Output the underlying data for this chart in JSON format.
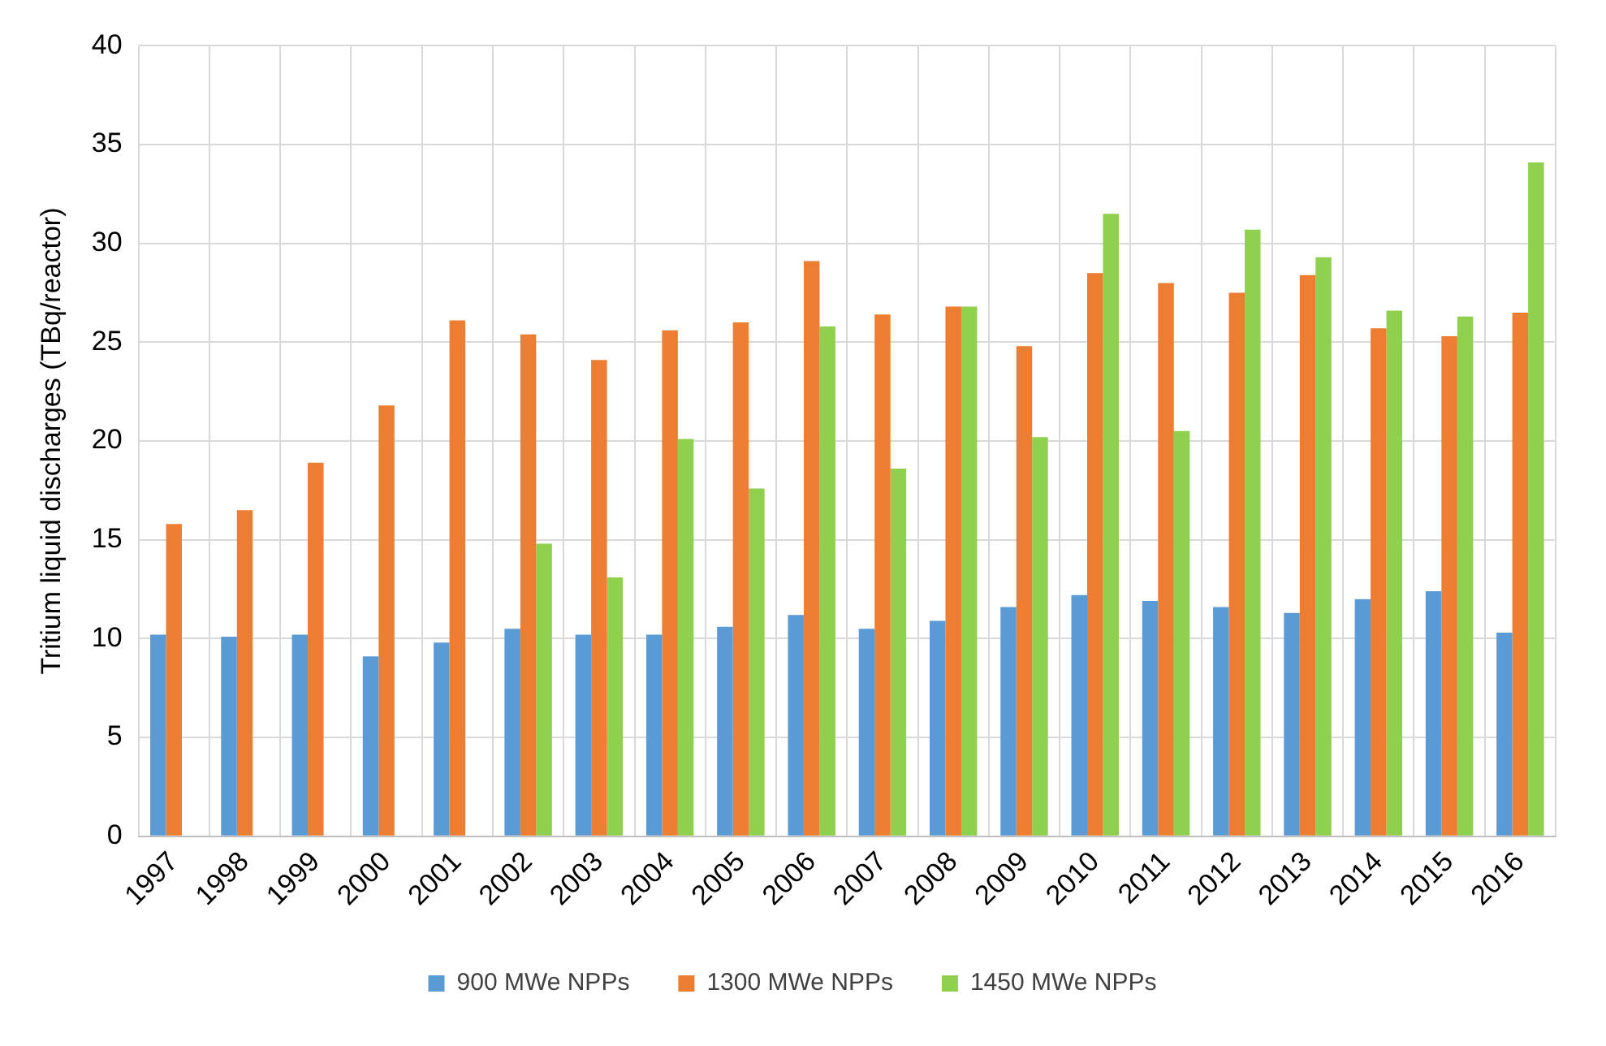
{
  "chart_data": {
    "type": "bar",
    "ylabel": "Tritium liquid discharges (TBq/reactor)",
    "categories": [
      "1997",
      "1998",
      "1999",
      "2000",
      "2001",
      "2002",
      "2003",
      "2004",
      "2005",
      "2006",
      "2007",
      "2008",
      "2009",
      "2010",
      "2011",
      "2012",
      "2013",
      "2014",
      "2015",
      "2016"
    ],
    "series": [
      {
        "name": "900 MWe NPPs",
        "color": "#5b9bd5",
        "values": [
          10.2,
          10.1,
          10.2,
          9.1,
          9.8,
          10.5,
          10.2,
          10.2,
          10.6,
          11.2,
          10.5,
          10.9,
          11.6,
          12.2,
          11.9,
          11.6,
          11.3,
          12.0,
          12.4,
          10.3
        ]
      },
      {
        "name": "1300 MWe NPPs",
        "color": "#ed7d31",
        "values": [
          15.8,
          16.5,
          18.9,
          21.8,
          26.1,
          25.4,
          24.1,
          25.6,
          26.0,
          29.1,
          26.4,
          26.8,
          24.8,
          28.5,
          28.0,
          27.5,
          28.4,
          25.7,
          25.3,
          26.5
        ]
      },
      {
        "name": "1450 MWe NPPs",
        "color": "#8fd14f",
        "values": [
          null,
          null,
          null,
          null,
          null,
          14.8,
          13.1,
          20.1,
          17.6,
          25.8,
          18.6,
          26.8,
          20.2,
          31.5,
          20.5,
          30.7,
          29.3,
          26.6,
          26.3,
          34.1
        ]
      }
    ],
    "ylim": [
      0,
      40
    ],
    "yticks": [
      0,
      5,
      10,
      15,
      20,
      25,
      30,
      35,
      40
    ],
    "grid": true,
    "legend": "bottom"
  }
}
